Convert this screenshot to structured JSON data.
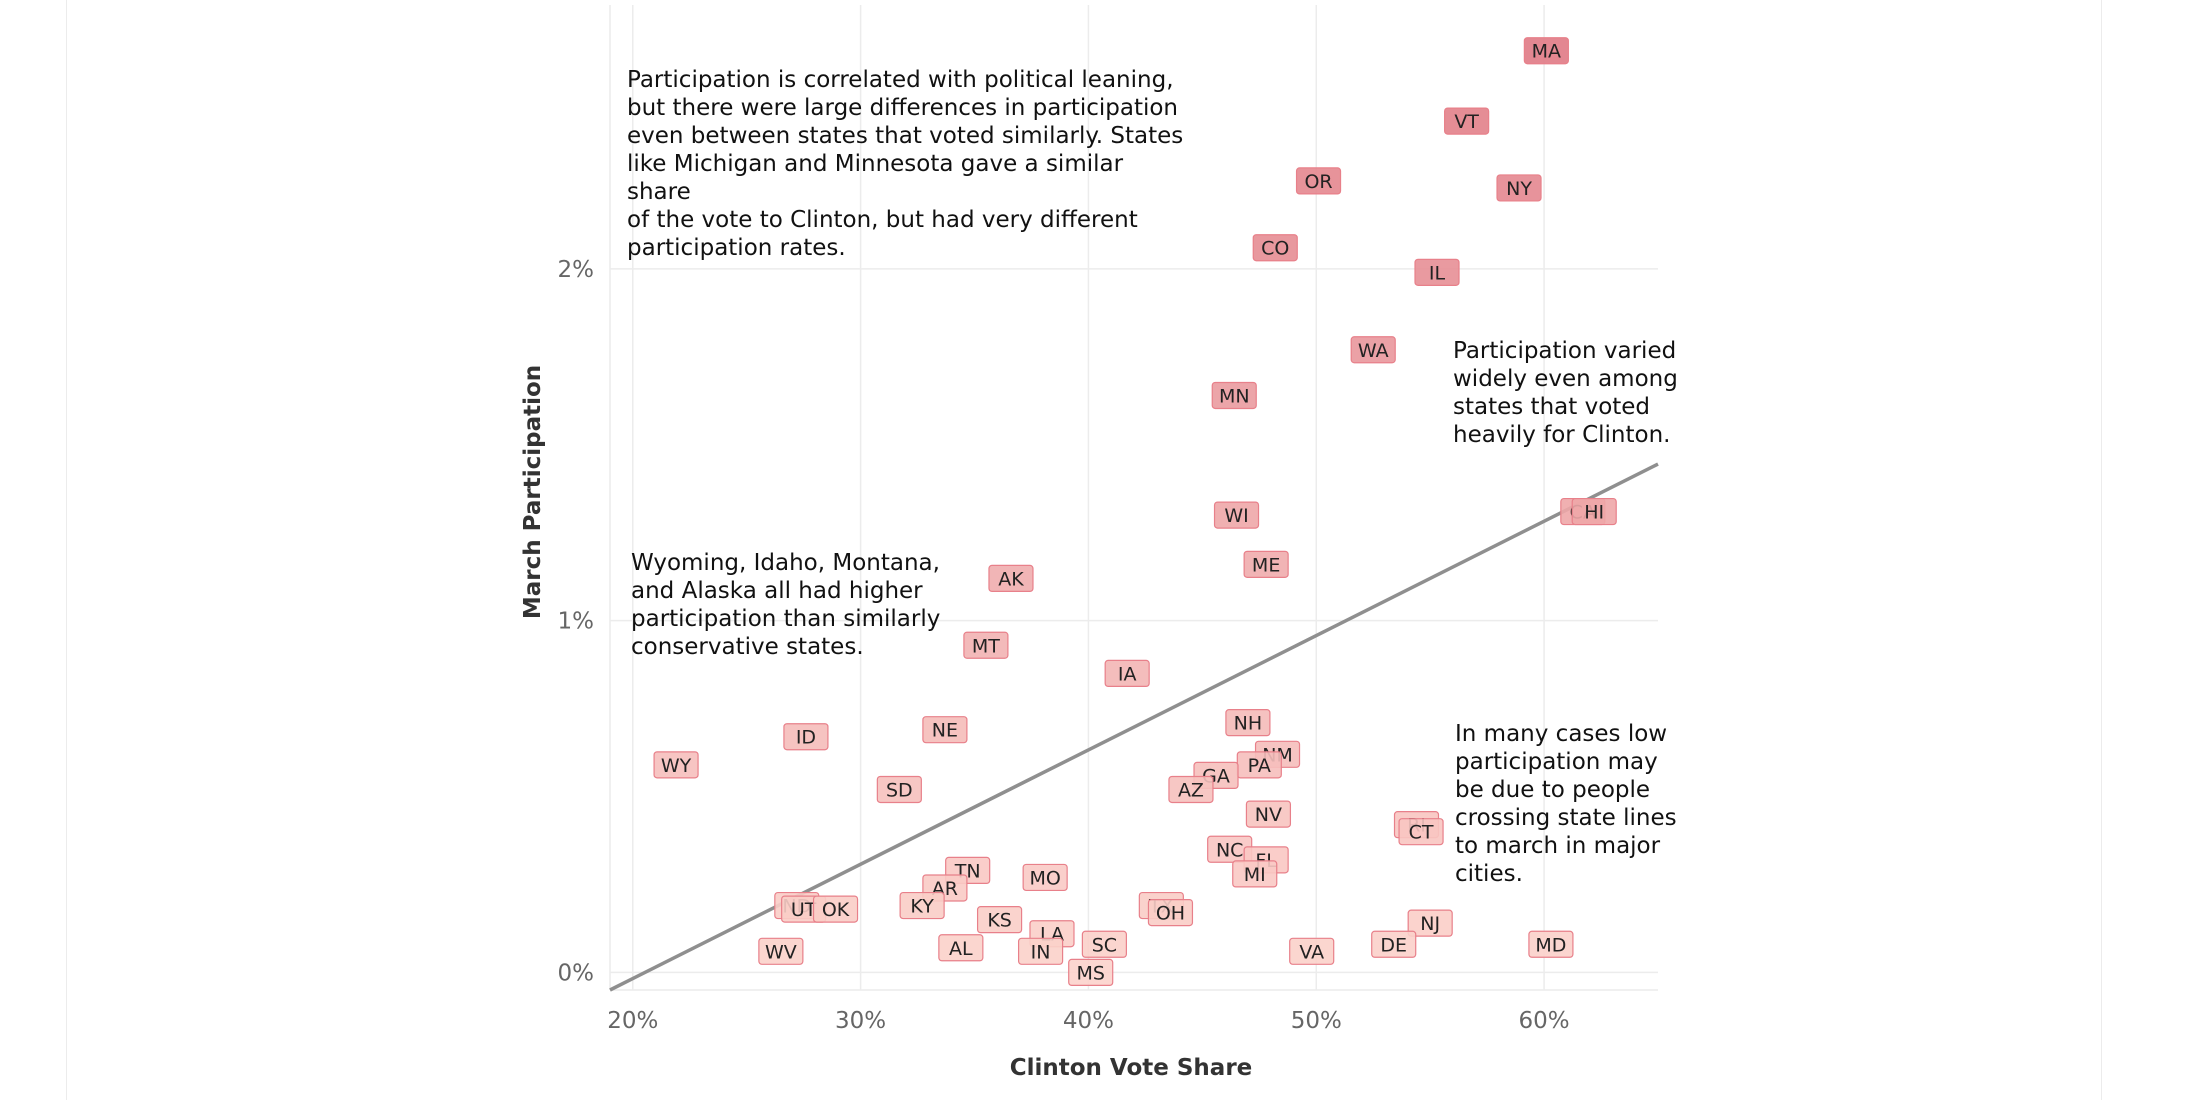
{
  "chart_data": {
    "type": "scatter",
    "xlabel": "Clinton Vote Share",
    "ylabel": "March Participation",
    "xlim": [
      0.19,
      0.65
    ],
    "ylim": [
      -0.0005,
      0.0275
    ],
    "x_ticks": [
      {
        "value": 0.2,
        "label": "20%"
      },
      {
        "value": 0.3,
        "label": "30%"
      },
      {
        "value": 0.4,
        "label": "40%"
      },
      {
        "value": 0.5,
        "label": "50%"
      },
      {
        "value": 0.6,
        "label": "60%"
      }
    ],
    "y_ticks": [
      {
        "value": 0.0,
        "label": "0%"
      },
      {
        "value": 0.01,
        "label": "1%"
      },
      {
        "value": 0.02,
        "label": "2%"
      }
    ],
    "grid": true,
    "trendline": {
      "x": [
        0.19,
        0.65
      ],
      "y": [
        -0.0005,
        0.01445
      ]
    },
    "point_color_low": "#fcd3cc",
    "point_color_high": "#e07a85",
    "point_stroke": "#e8808a",
    "points": [
      {
        "state": "MA",
        "x": 0.601,
        "y": 0.0262
      },
      {
        "state": "VT",
        "x": 0.566,
        "y": 0.0242
      },
      {
        "state": "OR",
        "x": 0.501,
        "y": 0.0225
      },
      {
        "state": "NY",
        "x": 0.589,
        "y": 0.0223
      },
      {
        "state": "CO",
        "x": 0.482,
        "y": 0.0206
      },
      {
        "state": "IL",
        "x": 0.553,
        "y": 0.0199
      },
      {
        "state": "WA",
        "x": 0.525,
        "y": 0.0177
      },
      {
        "state": "MN",
        "x": 0.464,
        "y": 0.0164
      },
      {
        "state": "CA",
        "x": 0.617,
        "y": 0.0131
      },
      {
        "state": "HI",
        "x": 0.622,
        "y": 0.0131
      },
      {
        "state": "WI",
        "x": 0.465,
        "y": 0.013
      },
      {
        "state": "ME",
        "x": 0.478,
        "y": 0.0116
      },
      {
        "state": "AK",
        "x": 0.366,
        "y": 0.0112
      },
      {
        "state": "MT",
        "x": 0.355,
        "y": 0.0093
      },
      {
        "state": "IA",
        "x": 0.417,
        "y": 0.0085
      },
      {
        "state": "NH",
        "x": 0.47,
        "y": 0.0071
      },
      {
        "state": "ID",
        "x": 0.276,
        "y": 0.0067
      },
      {
        "state": "NE",
        "x": 0.337,
        "y": 0.0069
      },
      {
        "state": "NM",
        "x": 0.483,
        "y": 0.0062
      },
      {
        "state": "PA",
        "x": 0.475,
        "y": 0.0059
      },
      {
        "state": "GA",
        "x": 0.456,
        "y": 0.0056
      },
      {
        "state": "WY",
        "x": 0.219,
        "y": 0.0059
      },
      {
        "state": "AZ",
        "x": 0.445,
        "y": 0.0052
      },
      {
        "state": "SD",
        "x": 0.317,
        "y": 0.0052
      },
      {
        "state": "NV",
        "x": 0.479,
        "y": 0.0045
      },
      {
        "state": "RI",
        "x": 0.544,
        "y": 0.0042
      },
      {
        "state": "CT",
        "x": 0.546,
        "y": 0.004
      },
      {
        "state": "NC",
        "x": 0.462,
        "y": 0.0035
      },
      {
        "state": "FL",
        "x": 0.478,
        "y": 0.0032
      },
      {
        "state": "MI",
        "x": 0.473,
        "y": 0.0028
      },
      {
        "state": "TN",
        "x": 0.347,
        "y": 0.0029
      },
      {
        "state": "MO",
        "x": 0.381,
        "y": 0.0027
      },
      {
        "state": "AR",
        "x": 0.337,
        "y": 0.0024
      },
      {
        "state": "ND",
        "x": 0.272,
        "y": 0.0019
      },
      {
        "state": "UT",
        "x": 0.275,
        "y": 0.0018
      },
      {
        "state": "OK",
        "x": 0.289,
        "y": 0.0018
      },
      {
        "state": "KY",
        "x": 0.327,
        "y": 0.0019
      },
      {
        "state": "TX",
        "x": 0.432,
        "y": 0.0019
      },
      {
        "state": "OH",
        "x": 0.436,
        "y": 0.0017
      },
      {
        "state": "NJ",
        "x": 0.55,
        "y": 0.0014
      },
      {
        "state": "KS",
        "x": 0.361,
        "y": 0.0015
      },
      {
        "state": "LA",
        "x": 0.384,
        "y": 0.0011
      },
      {
        "state": "SC",
        "x": 0.407,
        "y": 0.0008
      },
      {
        "state": "DE",
        "x": 0.534,
        "y": 0.0008
      },
      {
        "state": "MD",
        "x": 0.603,
        "y": 0.0008
      },
      {
        "state": "AL",
        "x": 0.344,
        "y": 0.0007
      },
      {
        "state": "VA",
        "x": 0.498,
        "y": 0.0006
      },
      {
        "state": "IN",
        "x": 0.379,
        "y": 0.0006
      },
      {
        "state": "WV",
        "x": 0.265,
        "y": 0.0006
      },
      {
        "state": "MS",
        "x": 0.401,
        "y": 0.0
      }
    ]
  },
  "annotations": [
    "Participation is correlated with political leaning,\nbut there were large differences in participation\neven between states that voted similarly.  States\nlike Michigan and Minnesota gave a similar share\nof the vote to Clinton, but had very different\nparticipation rates.",
    "Wyoming, Idaho, Montana,\nand Alaska all had higher\nparticipation than similarly\nconservative states.",
    "Participation varied\nwidely even among\nstates that voted\nheavily for Clinton.",
    "In many cases low\nparticipation may\nbe due to people\ncrossing state lines\nto march in major\ncities."
  ]
}
